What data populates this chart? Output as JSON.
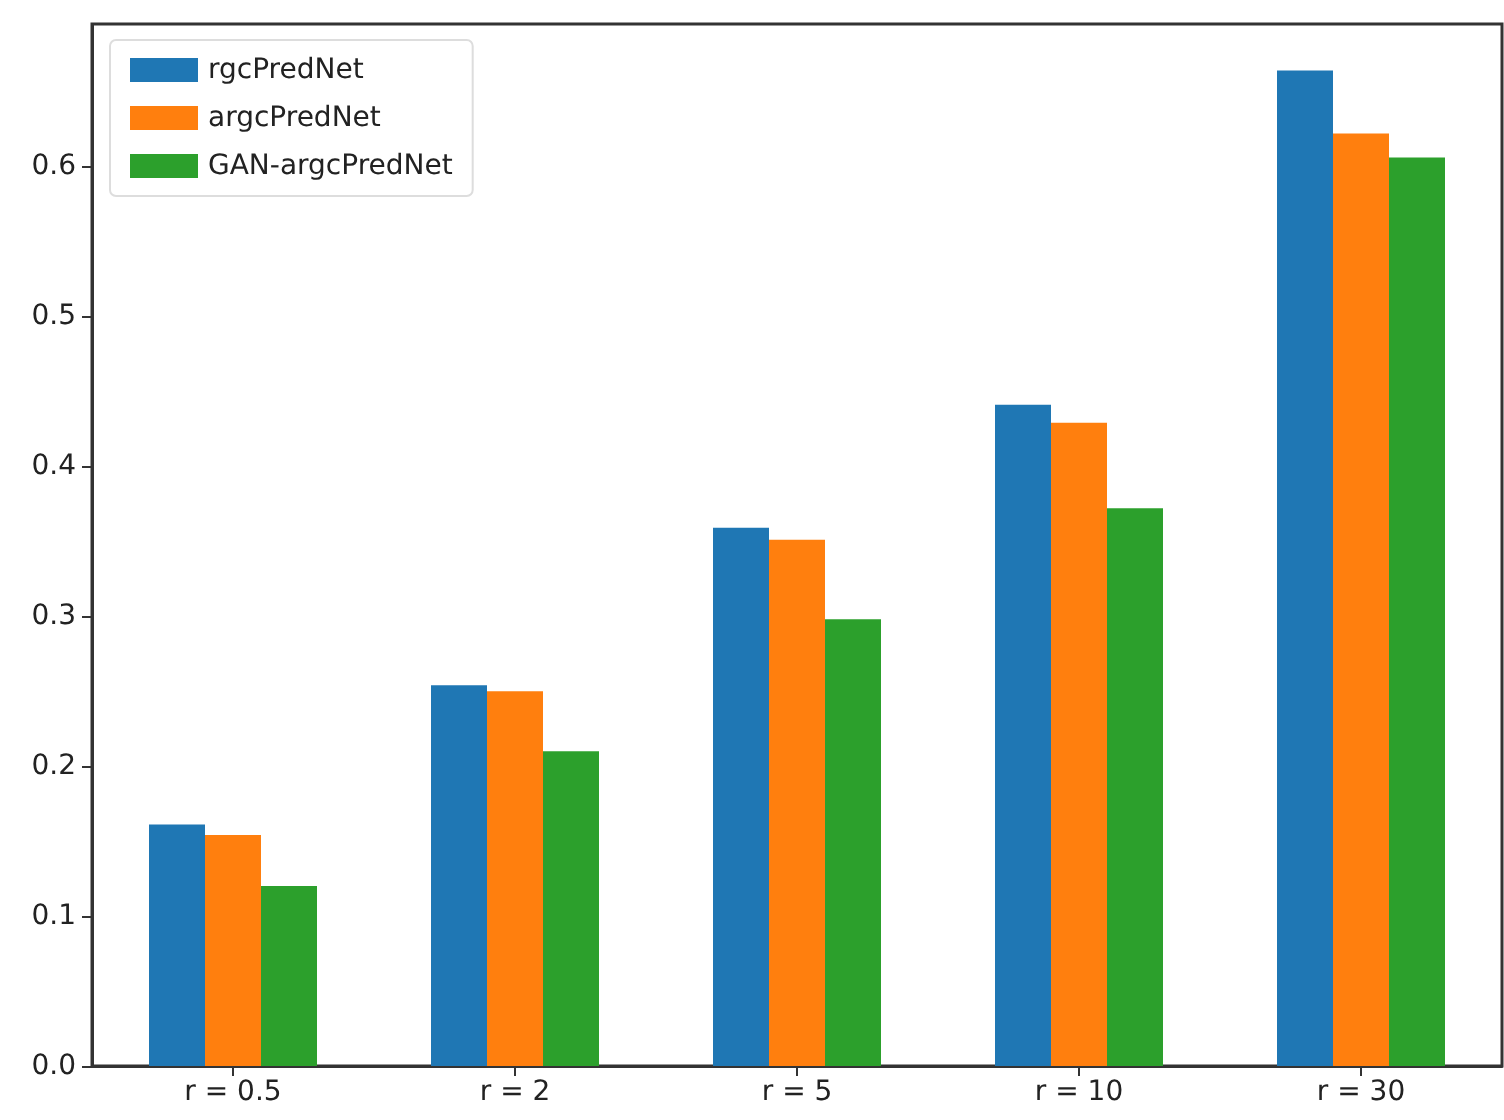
{
  "chart_data": {
    "type": "bar",
    "categories": [
      "r = 0.5",
      "r = 2",
      "r = 5",
      "r = 10",
      "r = 30"
    ],
    "series": [
      {
        "name": "rgcPredNet",
        "color": "#1f77b4",
        "values": [
          0.161,
          0.254,
          0.359,
          0.441,
          0.664
        ]
      },
      {
        "name": "argcPredNet",
        "color": "#ff7f0e",
        "values": [
          0.154,
          0.25,
          0.351,
          0.429,
          0.622
        ]
      },
      {
        "name": "GAN-argcPredNet",
        "color": "#2ca02c",
        "values": [
          0.12,
          0.21,
          0.298,
          0.372,
          0.606
        ]
      }
    ],
    "ylim": [
      0,
      0.695
    ],
    "yticks": [
      {
        "value": 0,
        "label": "0.0"
      },
      0.1,
      0.2,
      0.3,
      0.4,
      0.5,
      0.6
    ],
    "legend": "top left",
    "grid": false
  }
}
